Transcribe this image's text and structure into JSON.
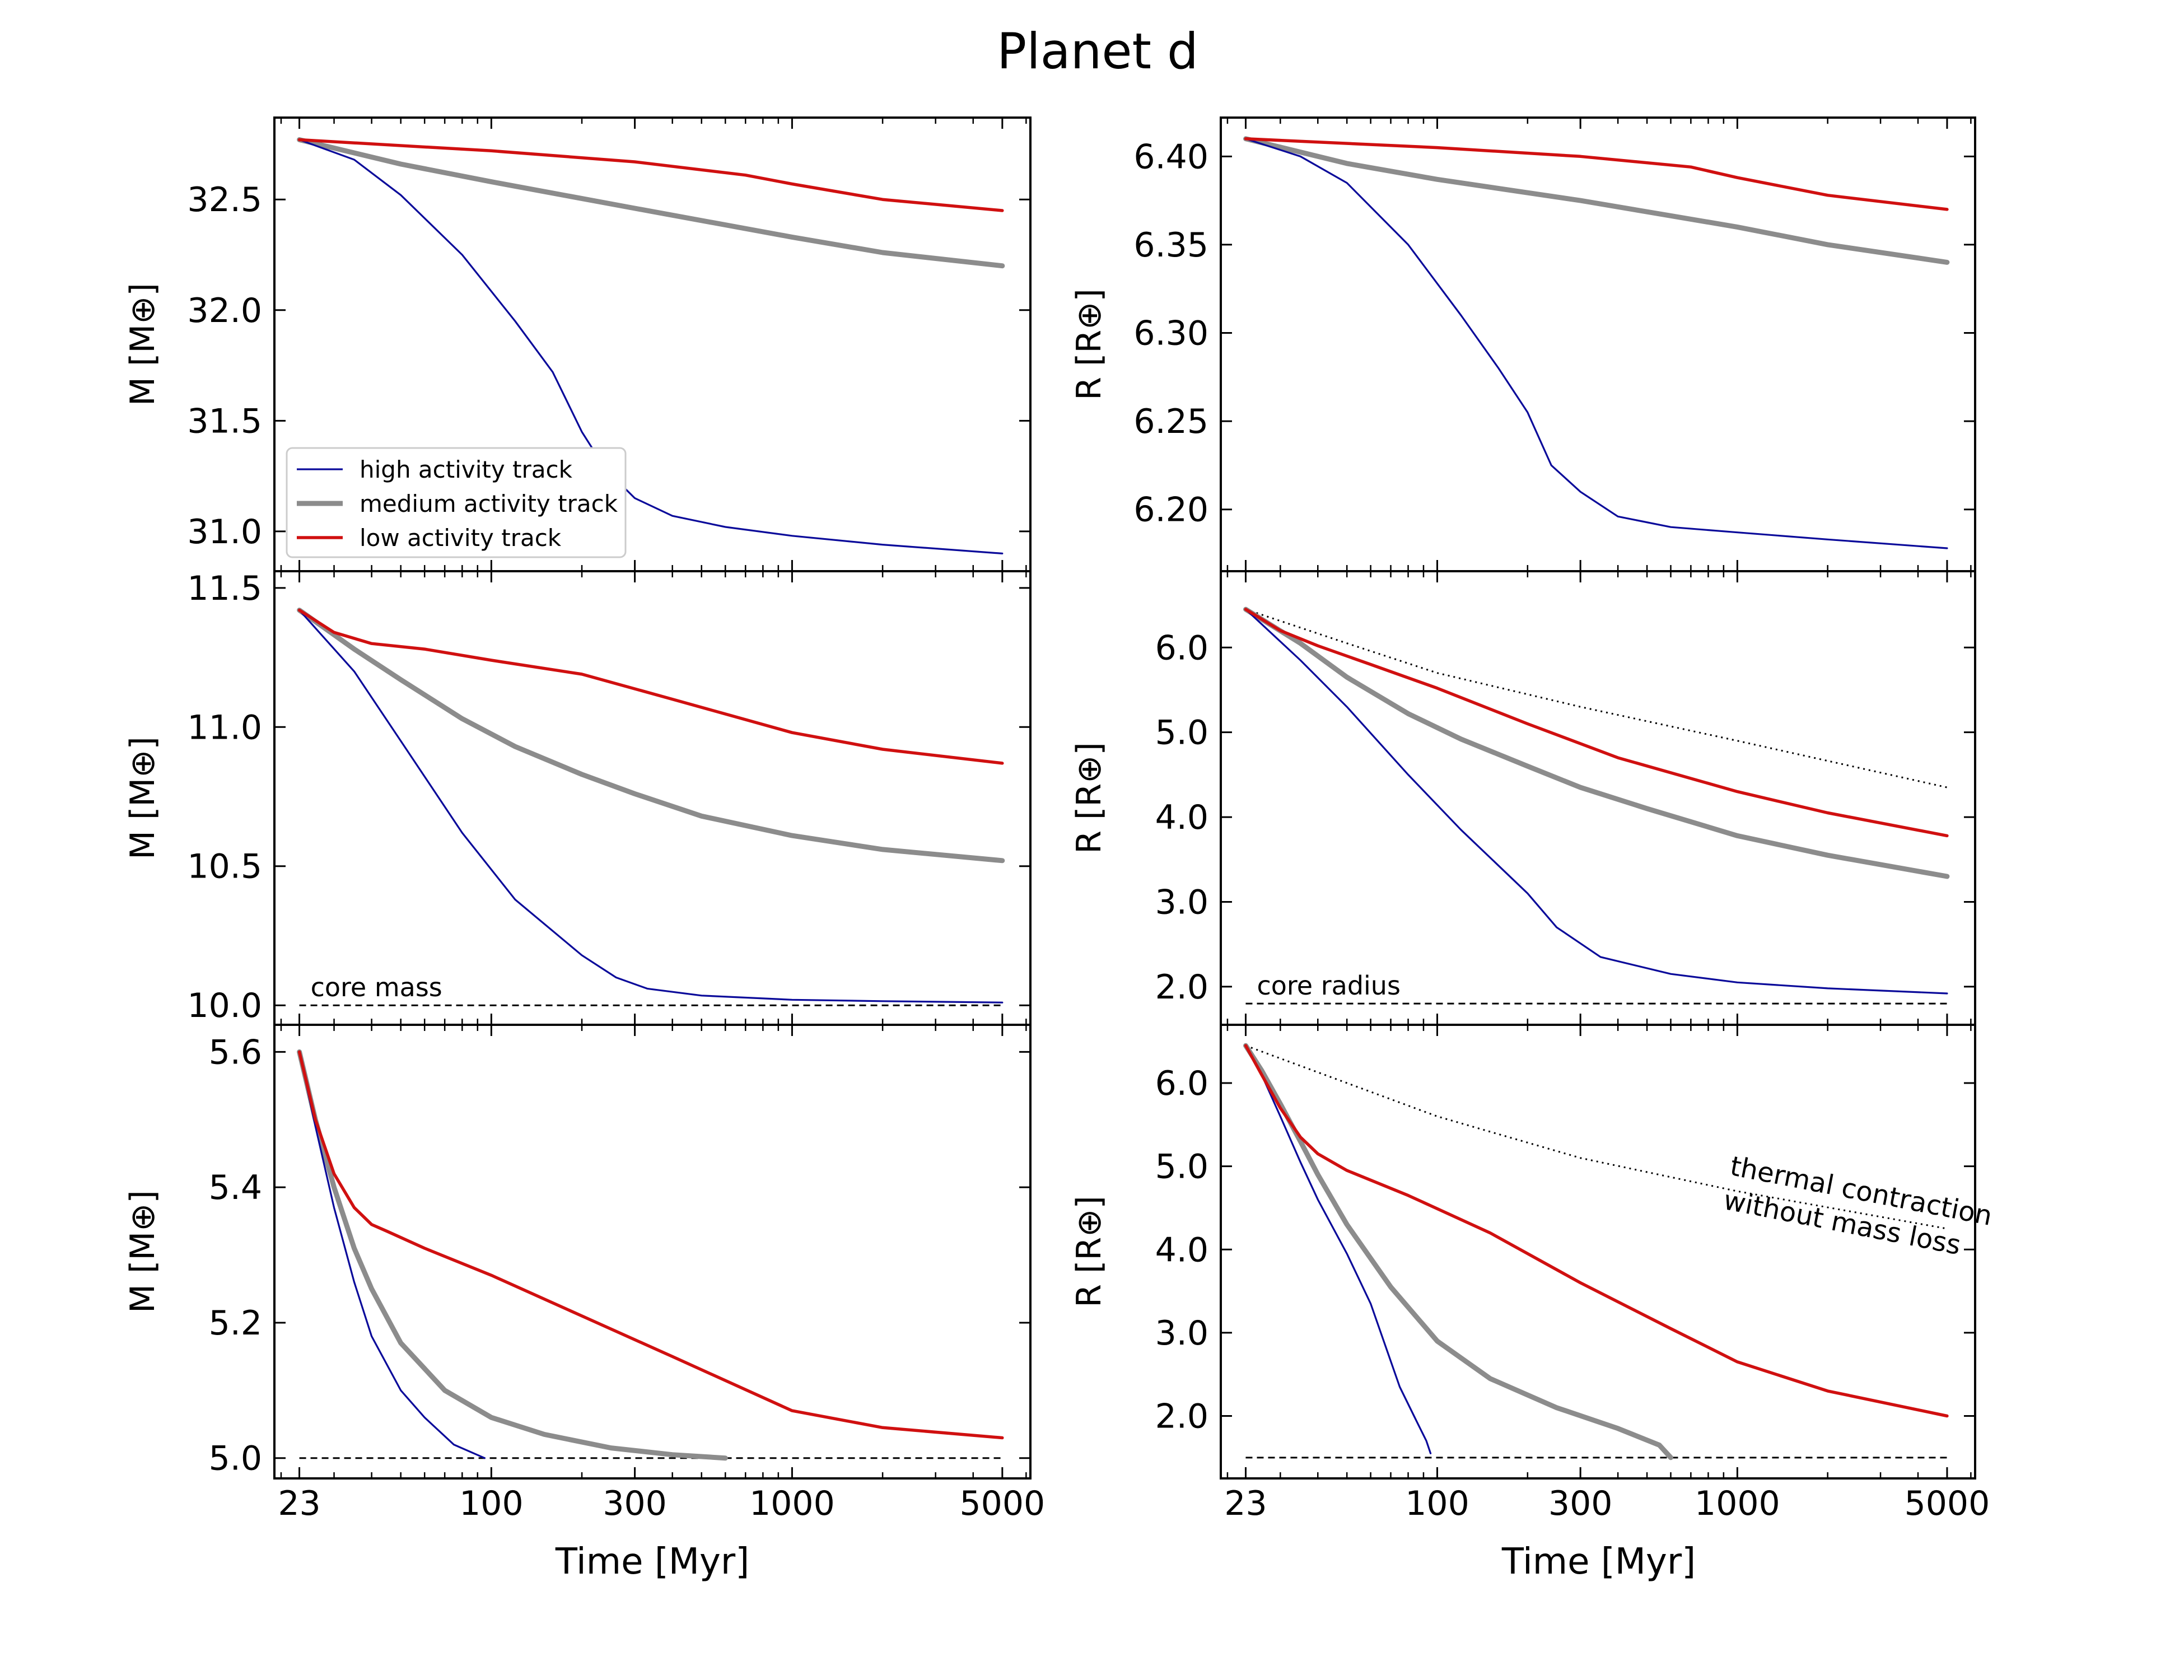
{
  "title": "Planet d",
  "colors": {
    "high": "#0a0a9a",
    "medium": "#8c8c8c",
    "low": "#d01010",
    "axis": "#000000"
  },
  "legend": [
    "high activity track",
    "medium activity track",
    "low activity track"
  ],
  "xlabel": "Time [Myr]",
  "xticks": [
    23,
    100,
    300,
    1000,
    5000
  ],
  "xticklabels": [
    "23",
    "100",
    "300",
    "1000",
    "5000"
  ],
  "xlim": [
    19,
    6200
  ],
  "panels": [
    {
      "ylabel": "M [M⊕]",
      "ylim": [
        30.82,
        32.87
      ],
      "yticks": [
        31.0,
        31.5,
        32.0,
        32.5
      ],
      "yticklabels": [
        "31.0",
        "31.5",
        "32.0",
        "32.5"
      ],
      "series": {
        "high": [
          [
            23,
            32.77
          ],
          [
            35,
            32.68
          ],
          [
            50,
            32.52
          ],
          [
            80,
            32.25
          ],
          [
            120,
            31.95
          ],
          [
            160,
            31.72
          ],
          [
            200,
            31.45
          ],
          [
            240,
            31.28
          ],
          [
            300,
            31.15
          ],
          [
            400,
            31.07
          ],
          [
            600,
            31.02
          ],
          [
            1000,
            30.98
          ],
          [
            2000,
            30.94
          ],
          [
            5000,
            30.9
          ]
        ],
        "medium": [
          [
            23,
            32.77
          ],
          [
            50,
            32.66
          ],
          [
            100,
            32.58
          ],
          [
            300,
            32.46
          ],
          [
            1000,
            32.33
          ],
          [
            2000,
            32.26
          ],
          [
            5000,
            32.2
          ]
        ],
        "low": [
          [
            23,
            32.77
          ],
          [
            100,
            32.72
          ],
          [
            300,
            32.67
          ],
          [
            700,
            32.61
          ],
          [
            1000,
            32.57
          ],
          [
            2000,
            32.5
          ],
          [
            5000,
            32.45
          ]
        ]
      }
    },
    {
      "ylabel": "R [R⊕]",
      "ylim": [
        6.165,
        6.422
      ],
      "yticks": [
        6.2,
        6.25,
        6.3,
        6.35,
        6.4
      ],
      "yticklabels": [
        "6.20",
        "6.25",
        "6.30",
        "6.35",
        "6.40"
      ],
      "series": {
        "high": [
          [
            23,
            6.41
          ],
          [
            35,
            6.4
          ],
          [
            50,
            6.385
          ],
          [
            80,
            6.35
          ],
          [
            120,
            6.31
          ],
          [
            160,
            6.28
          ],
          [
            200,
            6.255
          ],
          [
            240,
            6.225
          ],
          [
            300,
            6.21
          ],
          [
            400,
            6.196
          ],
          [
            600,
            6.19
          ],
          [
            1000,
            6.187
          ],
          [
            2000,
            6.183
          ],
          [
            5000,
            6.178
          ]
        ],
        "medium": [
          [
            23,
            6.41
          ],
          [
            50,
            6.396
          ],
          [
            100,
            6.387
          ],
          [
            300,
            6.375
          ],
          [
            1000,
            6.36
          ],
          [
            2000,
            6.35
          ],
          [
            5000,
            6.34
          ]
        ],
        "low": [
          [
            23,
            6.41
          ],
          [
            100,
            6.405
          ],
          [
            300,
            6.4
          ],
          [
            700,
            6.394
          ],
          [
            1000,
            6.388
          ],
          [
            2000,
            6.378
          ],
          [
            5000,
            6.37
          ]
        ]
      }
    },
    {
      "ylabel": "M [M⊕]",
      "ylim": [
        9.93,
        11.56
      ],
      "yticks": [
        10.0,
        10.5,
        11.0,
        11.5
      ],
      "yticklabels": [
        "10.0",
        "10.5",
        "11.0",
        "11.5"
      ],
      "core_level": 10.0,
      "core_label": "core mass",
      "series": {
        "high": [
          [
            23,
            11.42
          ],
          [
            35,
            11.2
          ],
          [
            50,
            10.95
          ],
          [
            80,
            10.62
          ],
          [
            120,
            10.38
          ],
          [
            200,
            10.18
          ],
          [
            260,
            10.1
          ],
          [
            330,
            10.06
          ],
          [
            500,
            10.035
          ],
          [
            1000,
            10.02
          ],
          [
            2000,
            10.015
          ],
          [
            5000,
            10.01
          ]
        ],
        "medium": [
          [
            23,
            11.42
          ],
          [
            35,
            11.28
          ],
          [
            50,
            11.17
          ],
          [
            80,
            11.03
          ],
          [
            120,
            10.93
          ],
          [
            200,
            10.83
          ],
          [
            300,
            10.76
          ],
          [
            500,
            10.68
          ],
          [
            1000,
            10.61
          ],
          [
            2000,
            10.56
          ],
          [
            5000,
            10.52
          ]
        ],
        "low": [
          [
            23,
            11.42
          ],
          [
            30,
            11.34
          ],
          [
            40,
            11.3
          ],
          [
            60,
            11.28
          ],
          [
            100,
            11.24
          ],
          [
            200,
            11.19
          ],
          [
            400,
            11.1
          ],
          [
            1000,
            10.98
          ],
          [
            2000,
            10.92
          ],
          [
            5000,
            10.87
          ]
        ]
      }
    },
    {
      "ylabel": "R [R⊕]",
      "ylim": [
        1.55,
        6.9
      ],
      "yticks": [
        2.0,
        3.0,
        4.0,
        5.0,
        6.0
      ],
      "yticklabels": [
        "2.0",
        "3.0",
        "4.0",
        "5.0",
        "6.0"
      ],
      "core_level": 1.8,
      "core_label": "core radius",
      "dotted": [
        [
          23,
          6.45
        ],
        [
          50,
          6.05
        ],
        [
          100,
          5.7
        ],
        [
          300,
          5.3
        ],
        [
          1000,
          4.9
        ],
        [
          5000,
          4.35
        ]
      ],
      "series": {
        "high": [
          [
            23,
            6.45
          ],
          [
            35,
            5.85
          ],
          [
            50,
            5.3
          ],
          [
            80,
            4.5
          ],
          [
            120,
            3.85
          ],
          [
            200,
            3.1
          ],
          [
            250,
            2.7
          ],
          [
            350,
            2.35
          ],
          [
            600,
            2.15
          ],
          [
            1000,
            2.05
          ],
          [
            2000,
            1.98
          ],
          [
            5000,
            1.92
          ]
        ],
        "medium": [
          [
            23,
            6.45
          ],
          [
            35,
            6.05
          ],
          [
            50,
            5.65
          ],
          [
            80,
            5.22
          ],
          [
            120,
            4.92
          ],
          [
            200,
            4.6
          ],
          [
            300,
            4.35
          ],
          [
            500,
            4.1
          ],
          [
            1000,
            3.78
          ],
          [
            2000,
            3.55
          ],
          [
            5000,
            3.3
          ]
        ],
        "low": [
          [
            23,
            6.45
          ],
          [
            30,
            6.2
          ],
          [
            40,
            6.02
          ],
          [
            60,
            5.8
          ],
          [
            100,
            5.52
          ],
          [
            200,
            5.1
          ],
          [
            400,
            4.7
          ],
          [
            1000,
            4.3
          ],
          [
            2000,
            4.05
          ],
          [
            5000,
            3.78
          ]
        ]
      }
    },
    {
      "ylabel": "M [M⊕]",
      "ylim": [
        4.97,
        5.64
      ],
      "yticks": [
        5.0,
        5.2,
        5.4,
        5.6
      ],
      "yticklabels": [
        "5.0",
        "5.2",
        "5.4",
        "5.6"
      ],
      "core_level": 5.0,
      "series": {
        "high": [
          [
            23,
            5.6
          ],
          [
            26,
            5.49
          ],
          [
            30,
            5.37
          ],
          [
            35,
            5.26
          ],
          [
            40,
            5.18
          ],
          [
            50,
            5.1
          ],
          [
            60,
            5.06
          ],
          [
            75,
            5.02
          ],
          [
            95,
            5.0
          ]
        ],
        "medium": [
          [
            23,
            5.6
          ],
          [
            26,
            5.5
          ],
          [
            30,
            5.4
          ],
          [
            35,
            5.31
          ],
          [
            40,
            5.25
          ],
          [
            50,
            5.17
          ],
          [
            70,
            5.1
          ],
          [
            100,
            5.06
          ],
          [
            150,
            5.035
          ],
          [
            250,
            5.015
          ],
          [
            400,
            5.005
          ],
          [
            600,
            5.0
          ]
        ],
        "low": [
          [
            23,
            5.6
          ],
          [
            26,
            5.5
          ],
          [
            30,
            5.42
          ],
          [
            35,
            5.37
          ],
          [
            40,
            5.345
          ],
          [
            45,
            5.335
          ],
          [
            60,
            5.31
          ],
          [
            100,
            5.27
          ],
          [
            200,
            5.21
          ],
          [
            400,
            5.15
          ],
          [
            1000,
            5.07
          ],
          [
            2000,
            5.045
          ],
          [
            5000,
            5.03
          ]
        ]
      }
    },
    {
      "ylabel": "R [R⊕]",
      "ylim": [
        1.25,
        6.7
      ],
      "yticks": [
        2.0,
        3.0,
        4.0,
        5.0,
        6.0
      ],
      "yticklabels": [
        "2.0",
        "3.0",
        "4.0",
        "5.0",
        "6.0"
      ],
      "core_level": 1.5,
      "dotted": [
        [
          23,
          6.45
        ],
        [
          50,
          6.0
        ],
        [
          100,
          5.6
        ],
        [
          300,
          5.1
        ],
        [
          1000,
          4.7
        ],
        [
          5000,
          4.25
        ]
      ],
      "annotation": [
        "thermal contraction",
        "without mass loss"
      ],
      "series": {
        "high": [
          [
            23,
            6.45
          ],
          [
            26,
            6.1
          ],
          [
            30,
            5.6
          ],
          [
            35,
            5.05
          ],
          [
            40,
            4.6
          ],
          [
            50,
            3.95
          ],
          [
            60,
            3.35
          ],
          [
            75,
            2.35
          ],
          [
            85,
            1.95
          ],
          [
            92,
            1.7
          ],
          [
            95,
            1.55
          ]
        ],
        "medium": [
          [
            23,
            6.45
          ],
          [
            26,
            6.15
          ],
          [
            30,
            5.75
          ],
          [
            35,
            5.3
          ],
          [
            40,
            4.9
          ],
          [
            50,
            4.3
          ],
          [
            70,
            3.55
          ],
          [
            100,
            2.9
          ],
          [
            150,
            2.45
          ],
          [
            250,
            2.1
          ],
          [
            400,
            1.85
          ],
          [
            550,
            1.65
          ],
          [
            600,
            1.5
          ]
        ],
        "low": [
          [
            23,
            6.45
          ],
          [
            26,
            6.1
          ],
          [
            30,
            5.7
          ],
          [
            35,
            5.35
          ],
          [
            40,
            5.15
          ],
          [
            50,
            4.95
          ],
          [
            80,
            4.65
          ],
          [
            150,
            4.2
          ],
          [
            300,
            3.6
          ],
          [
            600,
            3.05
          ],
          [
            1000,
            2.65
          ],
          [
            2000,
            2.3
          ],
          [
            5000,
            2.0
          ]
        ]
      }
    }
  ]
}
